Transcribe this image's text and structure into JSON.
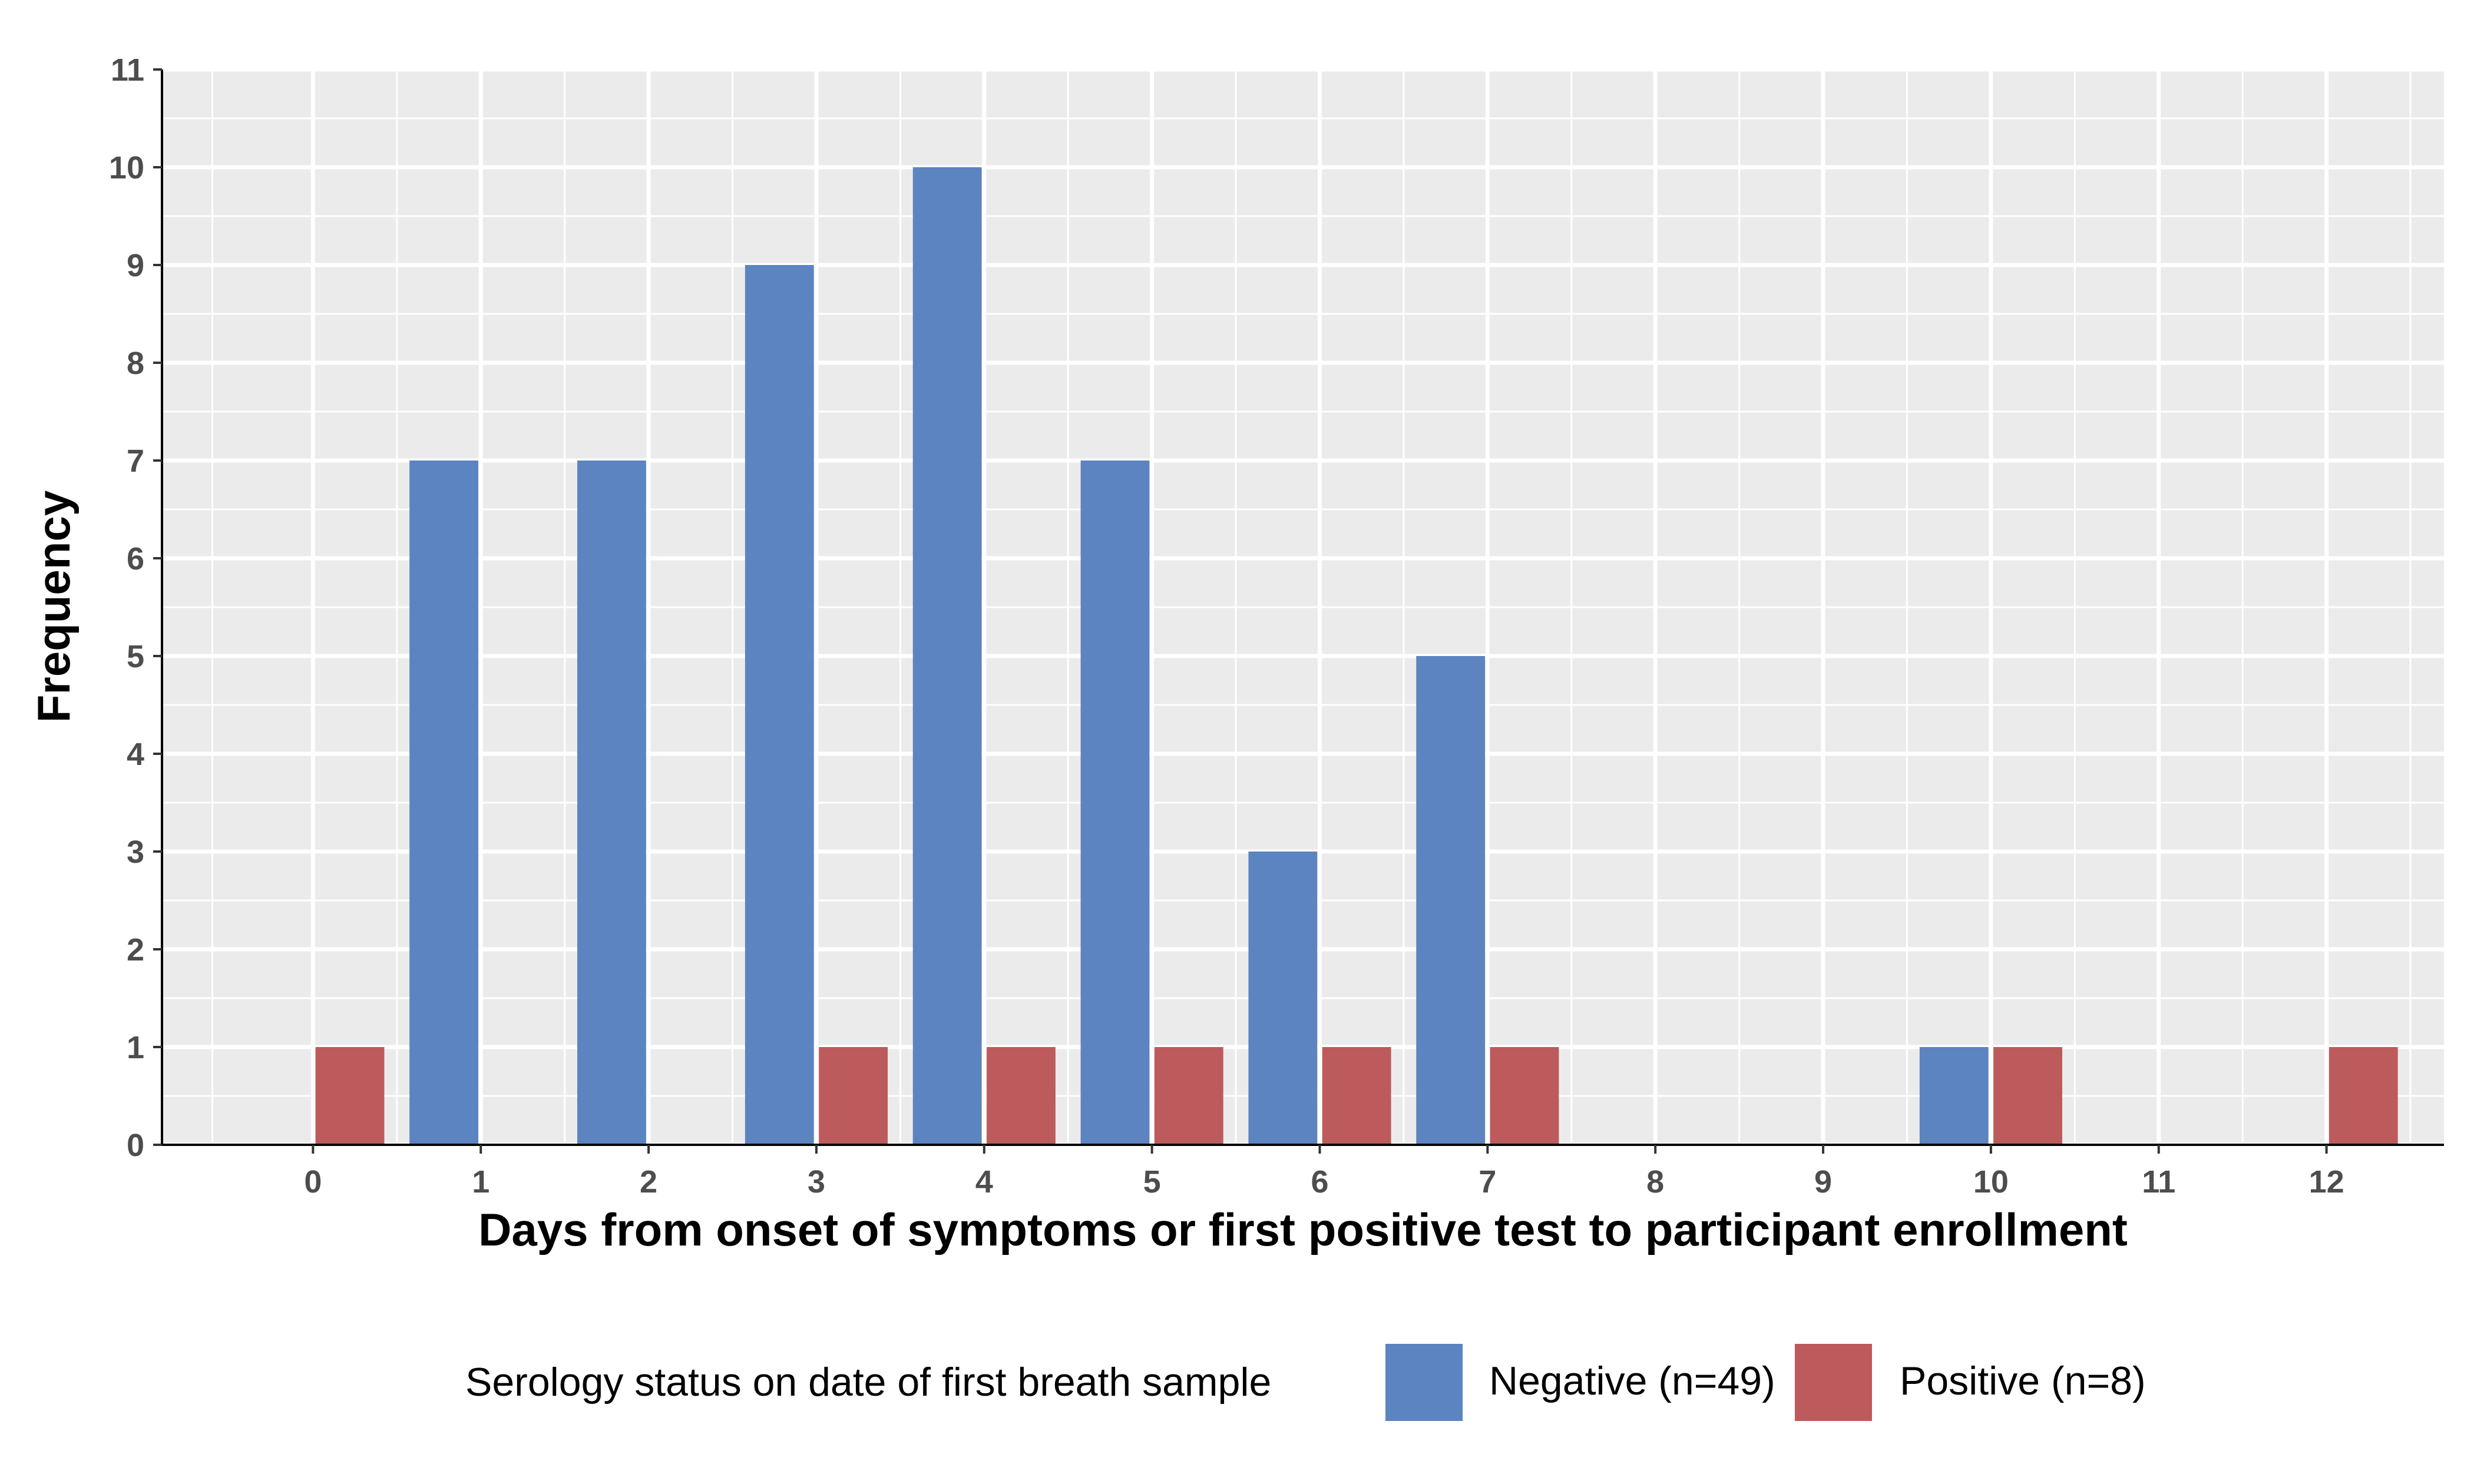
{
  "chart_data": {
    "type": "bar",
    "xlabel": "Days from onset of symptoms or first positive test to participant enrollment",
    "ylabel": "Frequency",
    "x_ticks": [
      "0",
      "1",
      "2",
      "3",
      "4",
      "5",
      "6",
      "7",
      "8",
      "9",
      "10",
      "11",
      "12"
    ],
    "y_ticks": [
      "0",
      "1",
      "2",
      "3",
      "4",
      "5",
      "6",
      "7",
      "8",
      "9",
      "10",
      "11"
    ],
    "xlim": [
      -0.9,
      12.7
    ],
    "ylim": [
      0,
      11
    ],
    "grid": true,
    "legend_position": "bottom",
    "legend_title": "Serology status on date of first breath sample",
    "series": [
      {
        "name": "Negative (n=49)",
        "color": "#5b84c0",
        "points": [
          [
            1,
            7
          ],
          [
            2,
            7
          ],
          [
            3,
            9
          ],
          [
            4,
            10
          ],
          [
            5,
            7
          ],
          [
            6,
            3
          ],
          [
            7,
            5
          ],
          [
            10,
            1
          ]
        ]
      },
      {
        "name": "Positive (n=8)",
        "color": "#bd5a5b",
        "points": [
          [
            0,
            1
          ],
          [
            3,
            1
          ],
          [
            4,
            1
          ],
          [
            5,
            1
          ],
          [
            6,
            1
          ],
          [
            7,
            1
          ],
          [
            10,
            1
          ],
          [
            12,
            1
          ]
        ]
      }
    ]
  }
}
